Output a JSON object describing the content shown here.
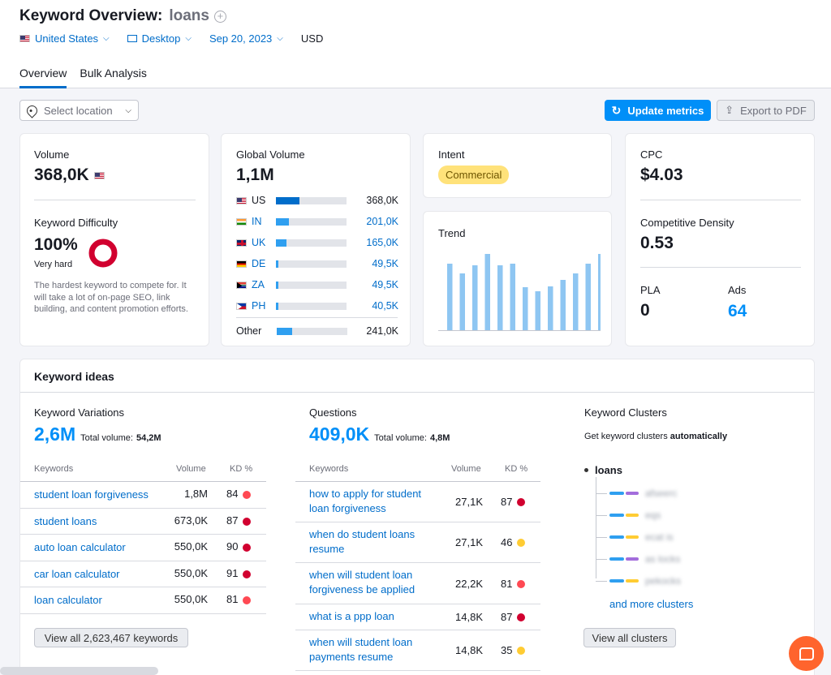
{
  "header": {
    "title": "Keyword Overview:",
    "keyword": "loans",
    "country": "United States",
    "device": "Desktop",
    "date": "Sep 20, 2023",
    "currency": "USD"
  },
  "tabs": [
    {
      "label": "Overview"
    },
    {
      "label": "Bulk Analysis"
    }
  ],
  "toolbar": {
    "location_placeholder": "Select location",
    "update_label": "Update metrics",
    "export_label": "Export to PDF"
  },
  "volume": {
    "label": "Volume",
    "value": "368,0K"
  },
  "difficulty": {
    "label": "Keyword Difficulty",
    "value": "100%",
    "level": "Very hard",
    "description": "The hardest keyword to compete for. It will take a lot of on-page SEO, link building, and content promotion efforts.",
    "percent": 100
  },
  "global": {
    "label": "Global Volume",
    "value": "1,1M",
    "rows": [
      {
        "code": "US",
        "value": "368,0K",
        "share": 0.33
      },
      {
        "code": "IN",
        "value": "201,0K",
        "share": 0.18
      },
      {
        "code": "UK",
        "value": "165,0K",
        "share": 0.15
      },
      {
        "code": "DE",
        "value": "49,5K",
        "share": 0.04
      },
      {
        "code": "ZA",
        "value": "49,5K",
        "share": 0.04
      },
      {
        "code": "PH",
        "value": "40,5K",
        "share": 0.04
      }
    ],
    "other": {
      "label": "Other",
      "value": "241,0K",
      "share": 0.22
    }
  },
  "intent": {
    "label": "Intent",
    "value": "Commercial"
  },
  "trend": {
    "label": "Trend",
    "values": [
      0.82,
      0.7,
      0.8,
      0.94,
      0.8,
      0.82,
      0.53,
      0.48,
      0.54,
      0.62,
      0.7,
      0.82,
      0.94
    ]
  },
  "cpc": {
    "label": "CPC",
    "value": "$4.03"
  },
  "density": {
    "label": "Competitive Density",
    "value": "0.53"
  },
  "pla": {
    "label": "PLA",
    "value": "0"
  },
  "ads": {
    "label": "Ads",
    "value": "64"
  },
  "ideas": {
    "title": "Keyword ideas",
    "variations": {
      "label": "Keyword Variations",
      "value": "2,6M",
      "total_label": "Total volume:",
      "total": "54,2M",
      "col_kw": "Keywords",
      "col_vol": "Volume",
      "col_kd": "KD %",
      "rows": [
        {
          "kw": "student loan forgiveness",
          "vol": "1,8M",
          "kd": "84",
          "color": "#ff4953"
        },
        {
          "kw": "student loans",
          "vol": "673,0K",
          "kd": "87",
          "color": "#d1002f"
        },
        {
          "kw": "auto loan calculator",
          "vol": "550,0K",
          "kd": "90",
          "color": "#d1002f"
        },
        {
          "kw": "car loan calculator",
          "vol": "550,0K",
          "kd": "91",
          "color": "#d1002f"
        },
        {
          "kw": "loan calculator",
          "vol": "550,0K",
          "kd": "81",
          "color": "#ff4953"
        }
      ],
      "view_all": "View all 2,623,467 keywords"
    },
    "questions": {
      "label": "Questions",
      "value": "409,0K",
      "total_label": "Total volume:",
      "total": "4,8M",
      "col_kw": "Keywords",
      "col_vol": "Volume",
      "col_kd": "KD %",
      "rows": [
        {
          "kw": "how to apply for student loan forgiveness",
          "vol": "27,1K",
          "kd": "87",
          "color": "#d1002f"
        },
        {
          "kw": "when do student loans resume",
          "vol": "27,1K",
          "kd": "46",
          "color": "#ffcc33"
        },
        {
          "kw": "when will student loan forgiveness be applied",
          "vol": "22,2K",
          "kd": "81",
          "color": "#ff4953"
        },
        {
          "kw": "what is a ppp loan",
          "vol": "14,8K",
          "kd": "87",
          "color": "#d1002f"
        },
        {
          "kw": "when will student loan payments resume",
          "vol": "14,8K",
          "kd": "35",
          "color": "#ffcc33"
        }
      ]
    },
    "clusters": {
      "label": "Keyword Clusters",
      "subtitle": "Get keyword clusters",
      "subtitle_bold": "automatically",
      "root": "loans",
      "items": [
        {
          "text": "afseerc",
          "color": "#a36ddc"
        },
        {
          "text": "eqs",
          "color": "#ffcc33"
        },
        {
          "text": "ecat is",
          "color": "#ffcc33"
        },
        {
          "text": "as locks",
          "color": "#a36ddc"
        },
        {
          "text": "pekocks",
          "color": "#ffcc33"
        }
      ],
      "more": "and more clusters",
      "view_all": "View all clusters"
    }
  }
}
